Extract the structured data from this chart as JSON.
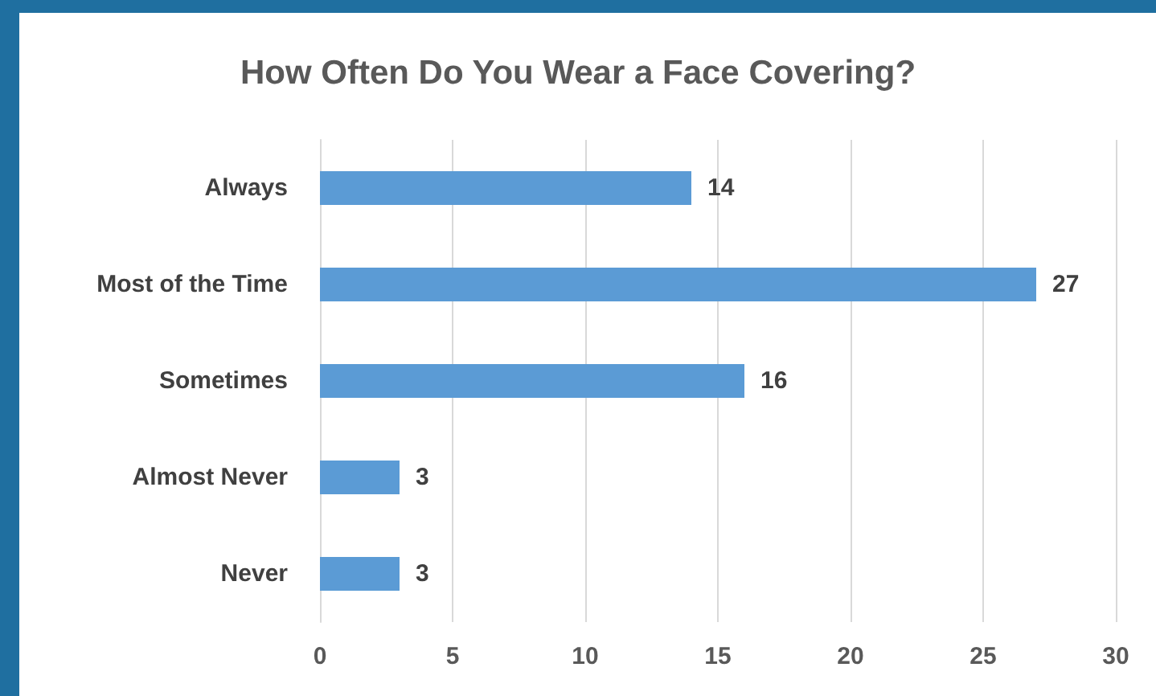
{
  "chart_data": {
    "type": "bar",
    "orientation": "horizontal",
    "title": "How Often Do You Wear a Face Covering?",
    "categories": [
      "Always",
      "Most of the Time",
      "Sometimes",
      "Almost Never",
      "Never"
    ],
    "values": [
      14,
      27,
      16,
      3,
      3
    ],
    "color": "#5b9bd5",
    "xlim": [
      0,
      30
    ],
    "xticks": [
      0,
      5,
      10,
      15,
      20,
      25,
      30
    ],
    "grid": "x",
    "data_labels": true
  }
}
